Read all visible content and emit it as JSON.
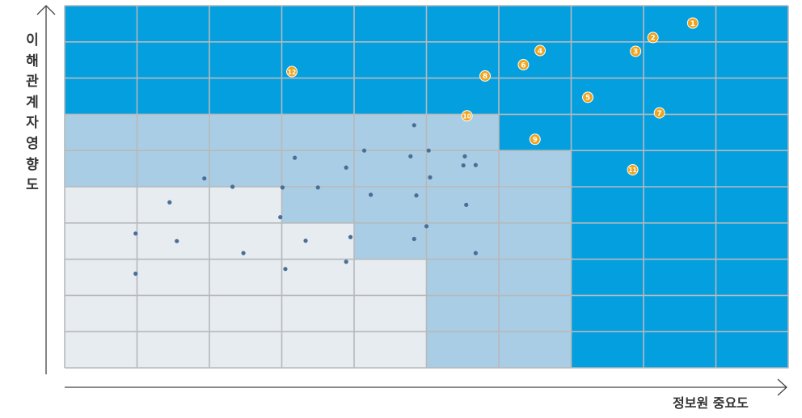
{
  "chart_data": {
    "type": "scatter",
    "title": "",
    "xlabel": "정보원 중요도",
    "ylabel": "이해관계자 영향도",
    "grid": true,
    "xlim": [
      0,
      10
    ],
    "ylim": [
      0,
      10
    ],
    "zones": [
      {
        "level": "high",
        "color": "#049fdf"
      },
      {
        "level": "medium",
        "color": "#a9cde4"
      },
      {
        "level": "low",
        "color": "#e6ecf0"
      }
    ],
    "numbered_points": [
      {
        "label": "1",
        "x": 8.68,
        "y": 9.52
      },
      {
        "label": "2",
        "x": 8.13,
        "y": 9.12
      },
      {
        "label": "3",
        "x": 7.89,
        "y": 8.74
      },
      {
        "label": "4",
        "x": 6.57,
        "y": 8.76
      },
      {
        "label": "5",
        "x": 7.23,
        "y": 7.47
      },
      {
        "label": "6",
        "x": 6.34,
        "y": 8.37
      },
      {
        "label": "7",
        "x": 8.22,
        "y": 7.04
      },
      {
        "label": "8",
        "x": 5.81,
        "y": 8.06
      },
      {
        "label": "9",
        "x": 6.5,
        "y": 6.31
      },
      {
        "label": "10",
        "x": 5.56,
        "y": 6.96
      },
      {
        "label": "11",
        "x": 7.85,
        "y": 5.47
      },
      {
        "label": "12",
        "x": 3.14,
        "y": 8.18
      }
    ],
    "dots": [
      [
        4.83,
        6.7
      ],
      [
        4.14,
        6.0
      ],
      [
        5.03,
        6.0
      ],
      [
        4.78,
        5.84
      ],
      [
        3.18,
        5.8
      ],
      [
        5.53,
        5.84
      ],
      [
        5.68,
        5.6
      ],
      [
        5.51,
        5.59
      ],
      [
        3.89,
        5.53
      ],
      [
        1.93,
        5.23
      ],
      [
        5.05,
        5.26
      ],
      [
        2.32,
        5.0
      ],
      [
        3.5,
        4.98
      ],
      [
        3.01,
        4.98
      ],
      [
        4.23,
        4.78
      ],
      [
        4.86,
        4.76
      ],
      [
        1.45,
        4.57
      ],
      [
        5.55,
        4.5
      ],
      [
        2.98,
        4.16
      ],
      [
        5.0,
        3.91
      ],
      [
        0.98,
        3.71
      ],
      [
        3.95,
        3.61
      ],
      [
        1.55,
        3.5
      ],
      [
        3.33,
        3.51
      ],
      [
        4.83,
        3.56
      ],
      [
        2.47,
        3.17
      ],
      [
        5.68,
        3.17
      ],
      [
        3.89,
        2.93
      ],
      [
        3.05,
        2.73
      ],
      [
        0.98,
        2.6
      ]
    ]
  }
}
